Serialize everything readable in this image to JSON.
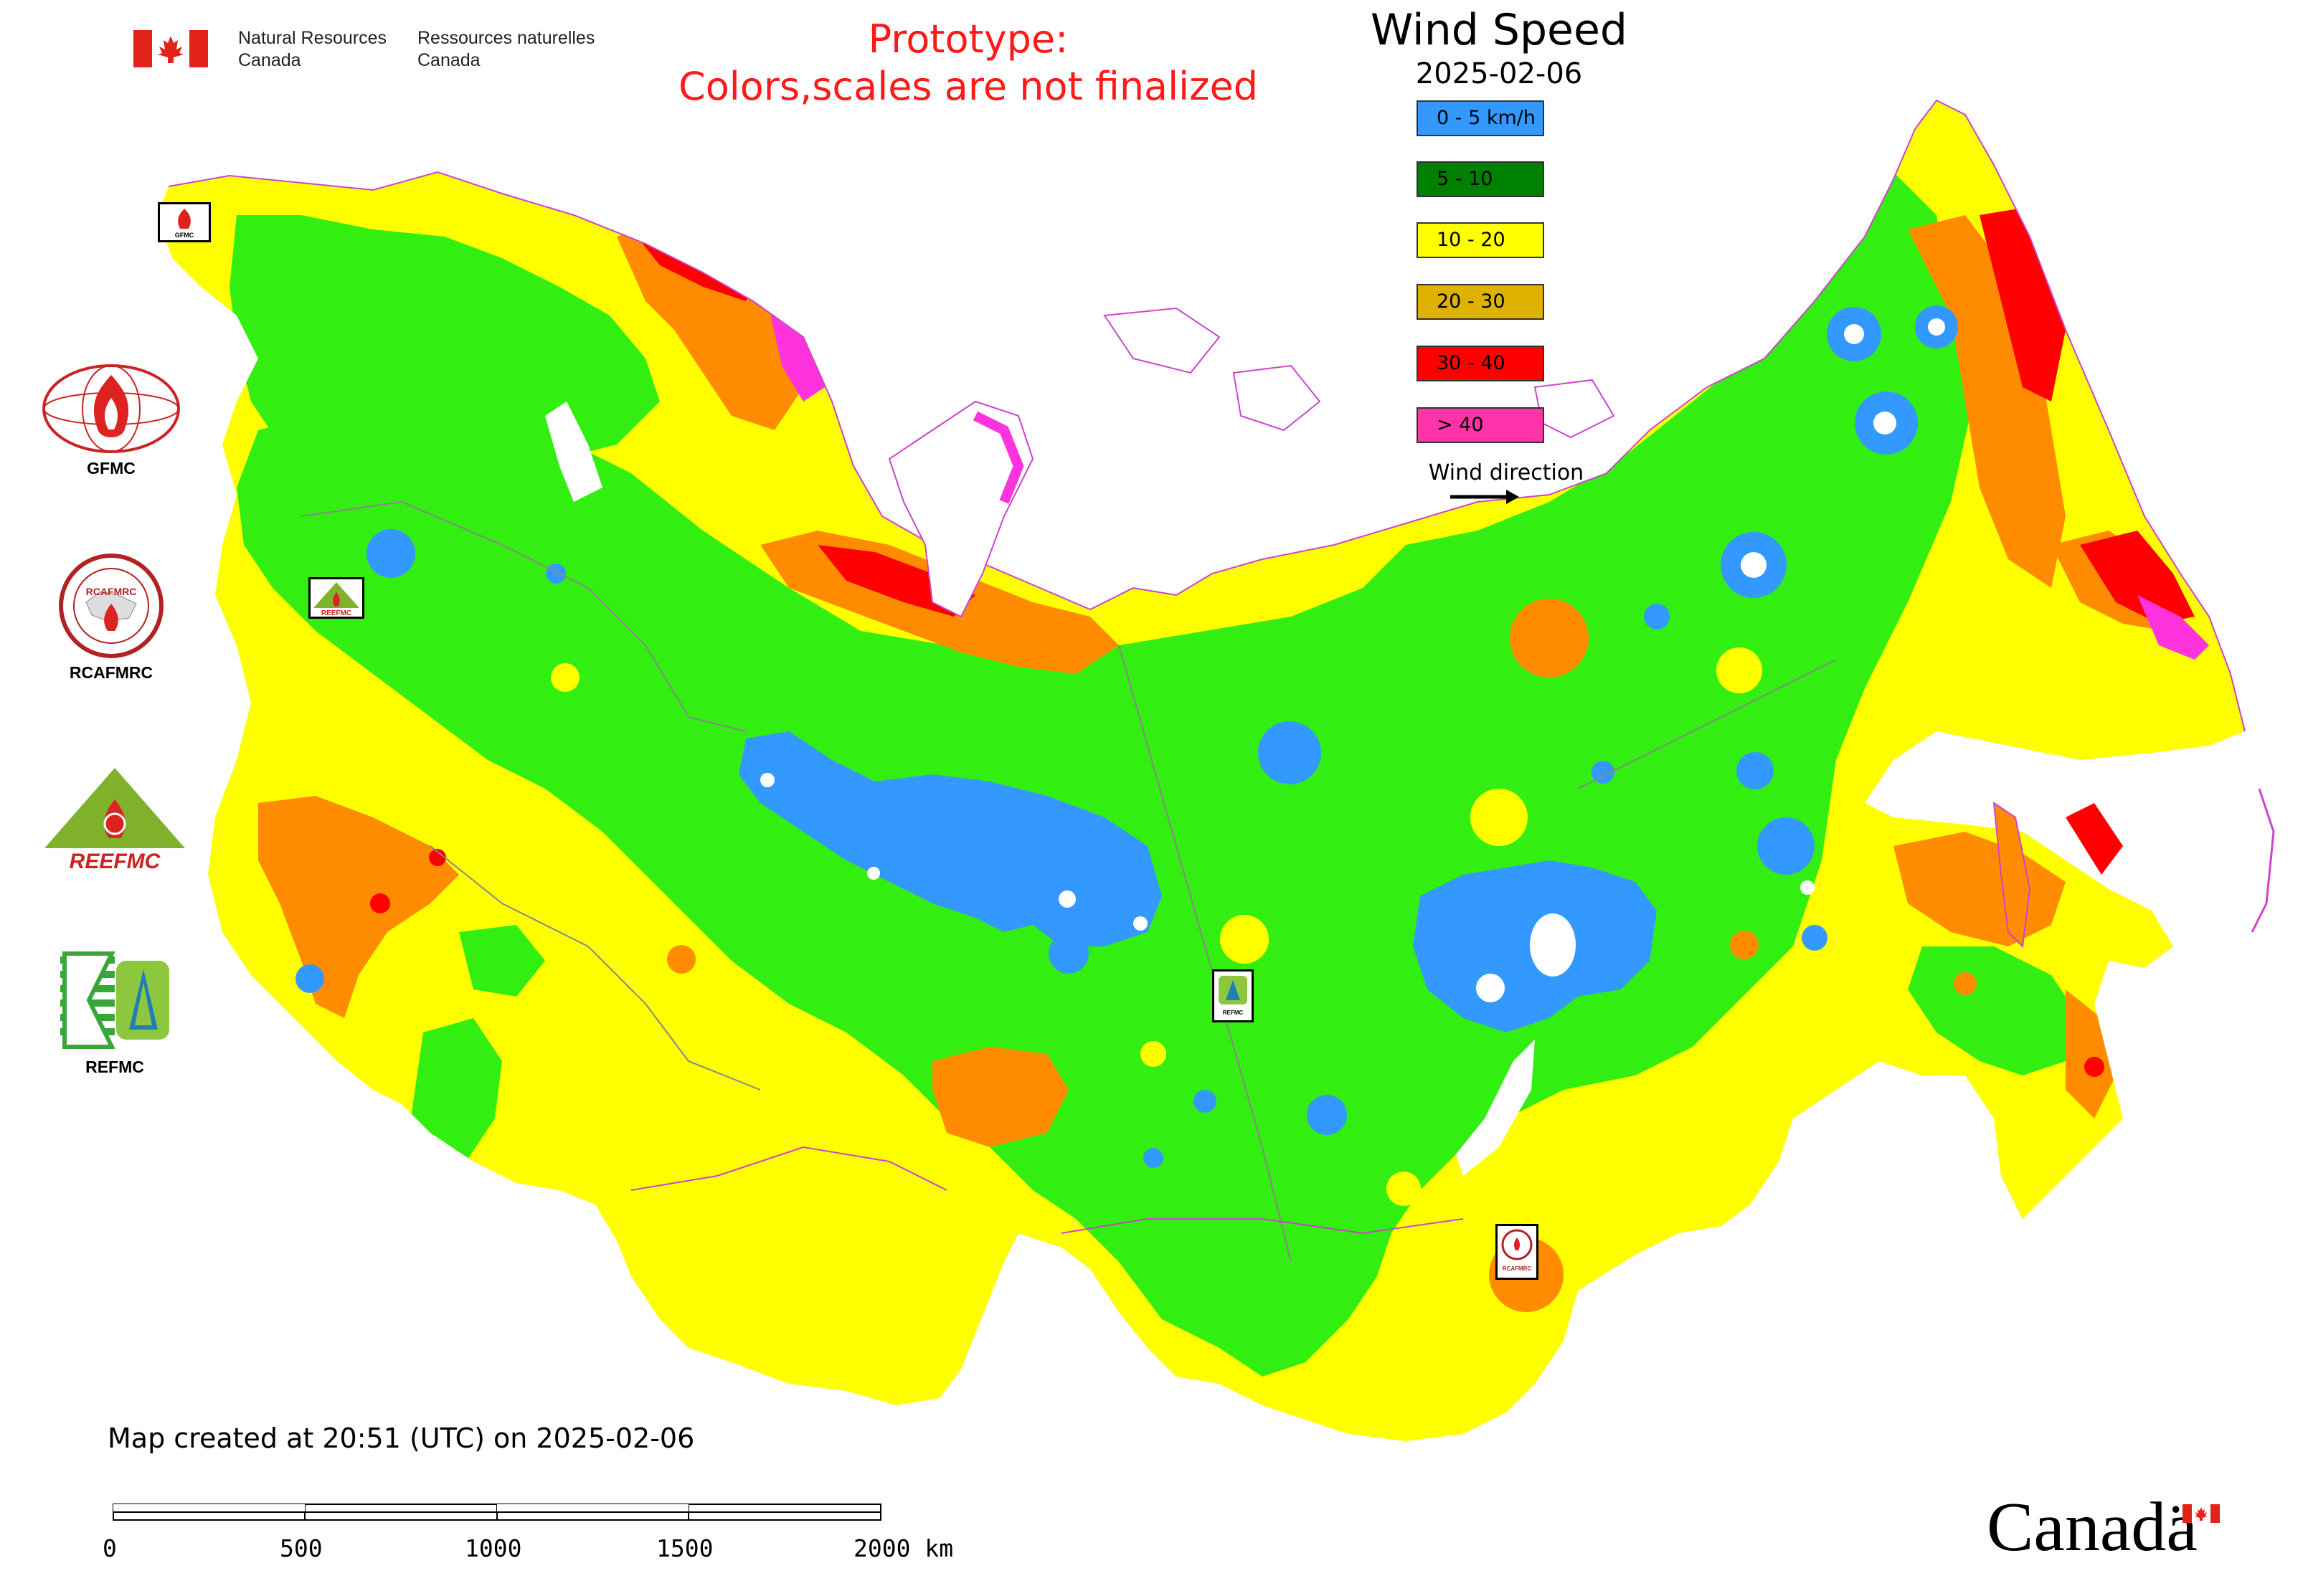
{
  "header": {
    "department_en": [
      "Natural Resources",
      "Canada"
    ],
    "department_fr": [
      "Ressources naturelles",
      "Canada"
    ],
    "prototype_notice": [
      "Prototype:",
      "Colors,scales are not finalized"
    ]
  },
  "map": {
    "title": "Wind Speed",
    "date": "2025-02-06",
    "legend": [
      {
        "label": "0 - 5 km/h",
        "color": "#3399ff"
      },
      {
        "label": "5 - 10",
        "color": "#008000"
      },
      {
        "label": "10 - 20",
        "color": "#ffff00"
      },
      {
        "label": "20 - 30",
        "color": "#ddb200"
      },
      {
        "label": "30 - 40",
        "color": "#ff0000"
      },
      {
        "label": "> 40",
        "color": "#ff33aa"
      }
    ],
    "wind_direction_label": "Wind direction",
    "field_colors": {
      "calm": "#3399ff",
      "light": "#33ee11",
      "moderate": "#ffff00",
      "fresh": "#ff8c00",
      "strong": "#ff0000",
      "gale": "#ff33dd",
      "water": "#ffffff",
      "border": "#cc44cc"
    }
  },
  "logos": [
    {
      "label": "GFMC",
      "icon": "gfmc-fire-globe-icon"
    },
    {
      "label": "RCAFMRC",
      "icon": "rcafmrc-seal-icon"
    },
    {
      "label": "",
      "icon": "reefmc-triangle-icon",
      "wordmark": "REEFMC"
    },
    {
      "label": "REFMC",
      "icon": "refmc-sigma-icon"
    }
  ],
  "map_markers": [
    {
      "name": "gfmc",
      "caption": "GFMC"
    },
    {
      "name": "reefmc",
      "caption": "REEFMC"
    },
    {
      "name": "refmc",
      "caption": "REFMC"
    },
    {
      "name": "rcafmrc",
      "caption": "RCAFMRC"
    }
  ],
  "footer": {
    "created": "Map created at 20:51 (UTC) on 2025-02-06",
    "scale_ticks": [
      "0",
      "500",
      "1000",
      "1500",
      "2000 km"
    ],
    "canada_wordmark": "Canadä"
  }
}
